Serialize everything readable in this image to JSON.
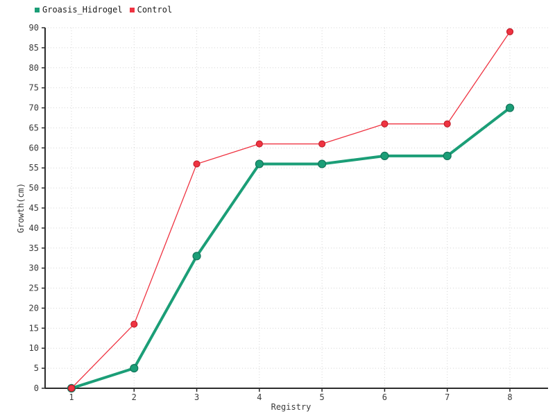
{
  "chart_data": {
    "type": "line",
    "title": "",
    "xlabel": "Registry",
    "ylabel": "Growth(cm)",
    "x": [
      1,
      2,
      3,
      4,
      5,
      6,
      7,
      8
    ],
    "series": [
      {
        "name": "Groasis_Hidrogel",
        "color": "#1b9e77",
        "marker_stroke": "#12745a",
        "line_width": 4,
        "marker_radius": 5.5,
        "values": [
          0,
          5,
          33,
          56,
          56,
          58,
          58,
          70
        ]
      },
      {
        "name": "Control",
        "color": "#ef3341",
        "marker_stroke": "#c2202c",
        "line_width": 1.3,
        "marker_radius": 4.5,
        "values": [
          0,
          16,
          56,
          61,
          61,
          66,
          66,
          89
        ]
      }
    ],
    "ylim": [
      0,
      90
    ],
    "y_tick_step": 5,
    "x_tick_labels": [
      "1",
      "2",
      "3",
      "4",
      "5",
      "6",
      "7",
      "8"
    ],
    "y_tick_labels": [
      "0",
      "5",
      "10",
      "15",
      "20",
      "25",
      "30",
      "35",
      "40",
      "45",
      "50",
      "55",
      "60",
      "65",
      "70",
      "75",
      "80",
      "85",
      "90"
    ],
    "grid": "dotted",
    "grid_color": "#d4d4d4",
    "axis_color": "#2b2b2b",
    "tick_text_color": "#3a3a3a",
    "legend_position": "top-left",
    "background": "#ffffff"
  }
}
